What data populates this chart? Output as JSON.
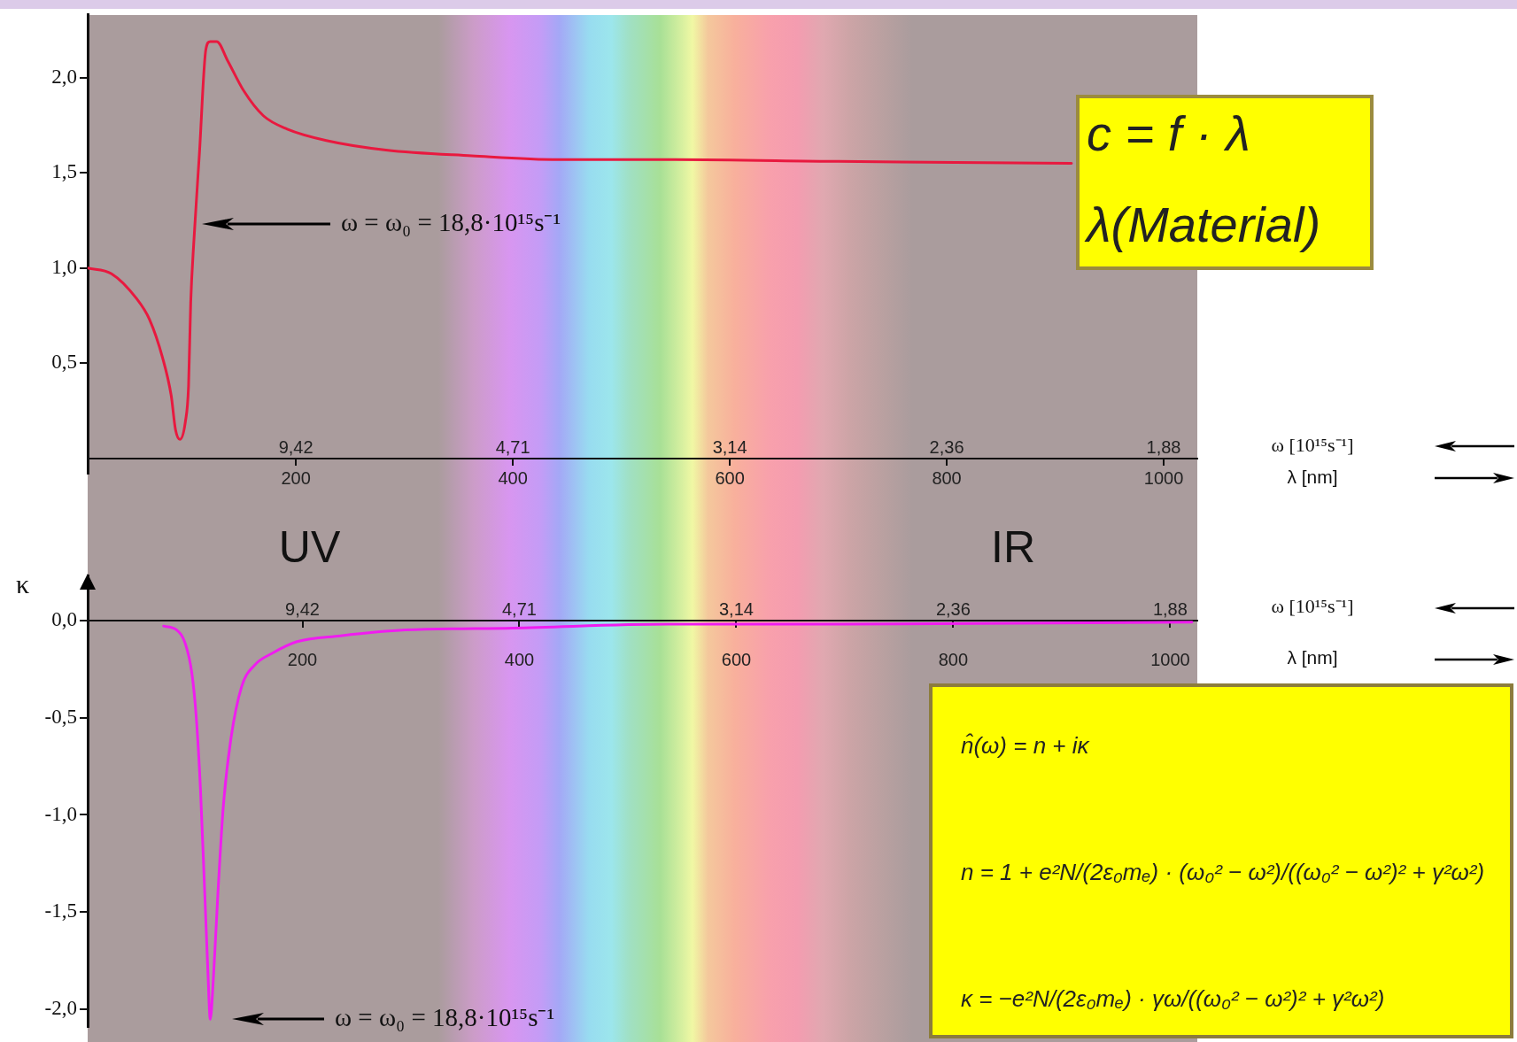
{
  "chart_data": [
    {
      "type": "line",
      "x": [
        8,
        30,
        53,
        65,
        77,
        85,
        89,
        93,
        98,
        101,
        103,
        106,
        111,
        117,
        121,
        127,
        137,
        152,
        170,
        192,
        228,
        283,
        362,
        442,
        545,
        700,
        915
      ],
      "series": [
        {
          "color": "#e8193f",
          "values": [
            1.0,
            0.97,
            0.84,
            0.73,
            0.53,
            0.33,
            0.15,
            0.1,
            0.19,
            0.38,
            0.82,
            1.15,
            1.6,
            2.15,
            2.19,
            2.19,
            2.09,
            1.93,
            1.8,
            1.73,
            1.67,
            1.62,
            1.59,
            1.57,
            1.57,
            1.56,
            1.55
          ]
        }
      ],
      "xlim": [
        8,
        1031
      ],
      "xticks": [
        200,
        400,
        600,
        800,
        1000
      ],
      "xlabel": "λ [nm]",
      "x2label": "ω [10¹⁵s⁻¹]",
      "ylim": [
        -0.08,
        2.33
      ],
      "yticks": [
        {
          "value": 0.5,
          "label": "0,5"
        },
        {
          "value": 1,
          "label": "1,0"
        },
        {
          "value": 1.5,
          "label": "1,5"
        },
        {
          "value": 2,
          "label": "2,0"
        }
      ],
      "annotations": [
        "ω = ω₀ = 18,8·10¹⁵s⁻¹",
        "9,42",
        "4,71",
        "3,14",
        "2,36",
        "1,88",
        "c = f · λ",
        "λ(Material)"
      ]
    },
    {
      "type": "line",
      "x": [
        72,
        84,
        92,
        98,
        102,
        106,
        110,
        113,
        115,
        118,
        122,
        127,
        134,
        144,
        156,
        172,
        195,
        235,
        295,
        394,
        537,
        700,
        1020
      ],
      "series": [
        {
          "color": "#f01cf0",
          "values": [
            -0.03,
            -0.05,
            -0.12,
            -0.27,
            -0.49,
            -0.87,
            -1.41,
            -1.83,
            -2.05,
            -1.83,
            -1.41,
            -0.96,
            -0.61,
            -0.34,
            -0.23,
            -0.17,
            -0.11,
            -0.08,
            -0.05,
            -0.04,
            -0.02,
            -0.02,
            -0.01
          ]
        }
      ],
      "xlim": [
        2,
        1025
      ],
      "xticks": [
        200,
        400,
        600,
        800,
        1000
      ],
      "xlabel": "λ [nm]",
      "x2label": "ω [10¹⁵s⁻¹]",
      "ylabel": "κ",
      "ylim": [
        -2.09,
        0.23
      ],
      "yticks": [
        {
          "value": 0,
          "label": "0,0"
        },
        {
          "value": -0.5,
          "label": "-0,5"
        },
        {
          "value": -1,
          "label": "-1,0"
        },
        {
          "value": -1.5,
          "label": "-1,5"
        },
        {
          "value": -2,
          "label": "-2,0"
        }
      ],
      "annotations": [
        "UV",
        "IR",
        "ω = ω₀ = 18,8·10¹⁵s⁻¹",
        "9,42",
        "4,71",
        "3,14",
        "2,36",
        "1,88",
        "n̂(ω) = n + iκ",
        "n = 1 + e²N/(2ε₀mₑ) · (ω₀² − ω²)/((ω₀² − ω²)² + γ²ω²)",
        "κ = −e²N/(2ε₀mₑ) · γω/((ω₀² − ω²)² + γ²ω²)"
      ]
    }
  ]
}
